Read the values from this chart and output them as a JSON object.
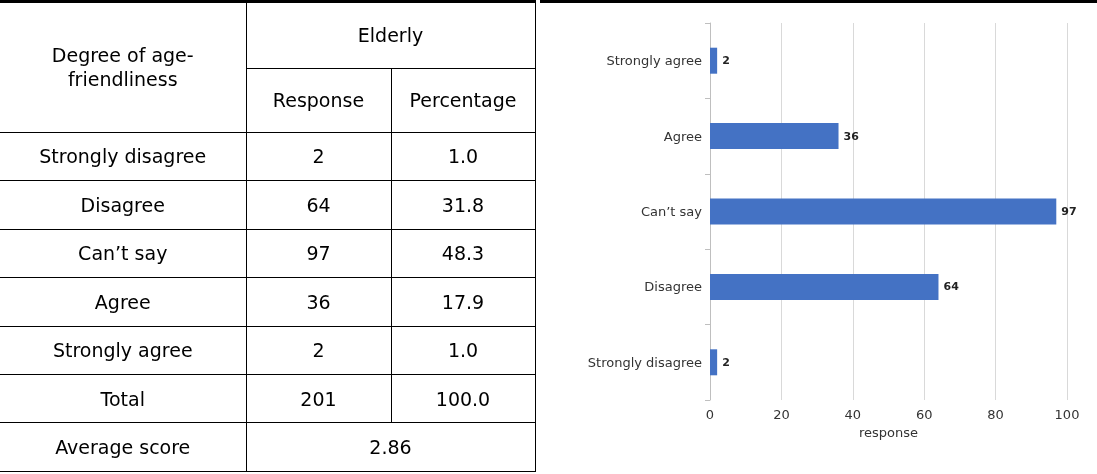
{
  "chart_data": [
    {
      "type": "other",
      "title": "Elderly",
      "ylabel": "Degree of age-friendliness",
      "categories": [
        "Strongly disagree",
        "Disagree",
        "Can’t say",
        "Agree",
        "Strongly agree",
        "Total"
      ],
      "series": [
        {
          "name": "Response",
          "values": [
            2,
            64,
            97,
            36,
            2,
            201
          ]
        },
        {
          "name": "Percentage",
          "values": [
            1.0,
            31.8,
            48.3,
            17.9,
            1.0,
            100.0
          ],
          "value_labels": [
            "1.0",
            "31.8",
            "48.3",
            "17.9",
            "1.0",
            "100.0"
          ]
        }
      ],
      "annotations": [
        "Average score",
        "2.86"
      ],
      "data_labels": true
    },
    {
      "type": "bar",
      "orientation": "horizontal",
      "categories": [
        "Strongly agree",
        "Agree",
        "Can’t say",
        "Disagree",
        "Strongly disagree"
      ],
      "values": [
        2,
        36,
        97,
        64,
        2
      ],
      "color": "#4472c4",
      "xlabel": "response",
      "xlim": [
        0,
        100
      ],
      "xticks": [
        0,
        20,
        40,
        60,
        80,
        100
      ],
      "grid": "x",
      "data_labels": true
    }
  ]
}
